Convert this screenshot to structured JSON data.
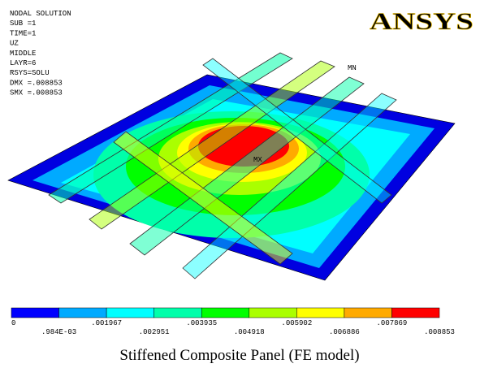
{
  "header": {
    "lines": [
      "NODAL SOLUTION",
      "SUB =1",
      "TIME=1",
      "UZ",
      "MIDDLE",
      "LAYR=6",
      "RSYS=SOLU",
      "DMX =.008853",
      "SMX =.008853"
    ],
    "logo": "ANSYS"
  },
  "model": {
    "min_label": "MN",
    "max_label": "MX"
  },
  "colorbar": {
    "colors": [
      "#0000ff",
      "#00aaff",
      "#00ffff",
      "#00ffaa",
      "#00ff00",
      "#aaff00",
      "#ffff00",
      "#ffaa00",
      "#ff0000"
    ],
    "labels": [
      "0",
      ".984E-03",
      ".001967",
      ".002951",
      ".003935",
      ".004918",
      ".005902",
      ".006886",
      ".007869",
      ".008853"
    ]
  },
  "caption": "Stiffened Composite Panel (FE model)"
}
